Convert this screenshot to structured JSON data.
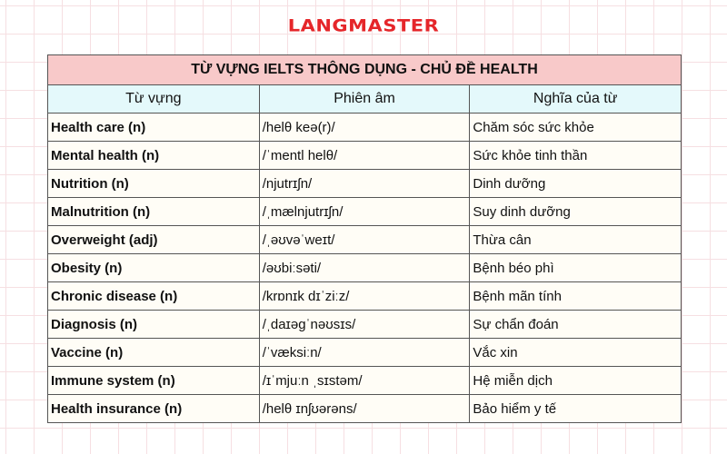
{
  "logo": "LANGMASTER",
  "table": {
    "title": "TỪ VỰNG IELTS THÔNG DỤNG - CHỦ ĐỀ HEALTH",
    "headers": [
      "Từ vựng",
      "Phiên âm",
      "Nghĩa của từ"
    ],
    "rows": [
      [
        "Health care (n)",
        "/helθ keə(r)/",
        "Chăm sóc sức khỏe"
      ],
      [
        "Mental health (n)",
        "/ˈmentl helθ/",
        "Sức khỏe tinh thần"
      ],
      [
        "Nutrition (n)",
        "/njutrɪʃn/",
        "Dinh dưỡng"
      ],
      [
        "Malnutrition (n)",
        "/ˌmælnjutrɪʃn/",
        "Suy dinh dưỡng"
      ],
      [
        "Overweight (adj)",
        "/ˌəʊvəˈweɪt/",
        "Thừa cân"
      ],
      [
        "Obesity (n)",
        "/əʊbiːsəti/",
        "Bệnh béo phì"
      ],
      [
        "Chronic disease (n)",
        "/krɒnɪk dɪˈziːz/",
        "Bệnh mãn tính"
      ],
      [
        "Diagnosis (n)",
        "/ˌdaɪəgˈnəʊsɪs/",
        "Sự chẩn đoán"
      ],
      [
        "Vaccine (n)",
        "/ˈvæksiːn/",
        "Vắc xin"
      ],
      [
        "Immune system (n)",
        "/ɪˈmjuːn ˌsɪstəm/",
        "Hệ miễn dịch"
      ],
      [
        "Health insurance (n)",
        "/helθ ɪnʃʊərəns/",
        "Bảo hiểm y tế"
      ]
    ]
  }
}
